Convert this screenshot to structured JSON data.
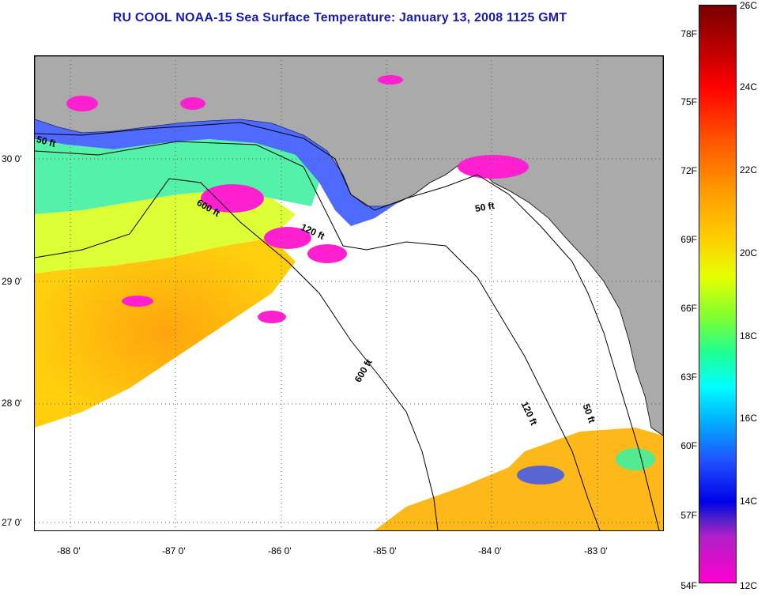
{
  "title": "RU COOL  NOAA-15  Sea Surface Temperature:  January 13, 2008 1125 GMT",
  "map": {
    "lat_labels": [
      "30 0'",
      "29 0'",
      "28 0'",
      "27 0'"
    ],
    "lon_labels": [
      "-88 0'",
      "-87 0'",
      "-86 0'",
      "-85 0'",
      "-84 0'",
      "-83 0'"
    ],
    "contour_labels": [
      "50 ft",
      "600 ft",
      "120 ft",
      "50 ft",
      "600 ft",
      "120 ft",
      "50 ft"
    ],
    "colors": {
      "land": "#aaaaaa",
      "ocean_no_data": "#ffffff",
      "title": "#1a1aa8"
    }
  },
  "colorbar": {
    "fahrenheit_labels": [
      "78F",
      "75F",
      "72F",
      "69F",
      "66F",
      "63F",
      "60F",
      "57F",
      "54F"
    ],
    "celsius_labels": [
      "26C",
      "24C",
      "22C",
      "20C",
      "18C",
      "16C",
      "14C",
      "12C"
    ]
  }
}
